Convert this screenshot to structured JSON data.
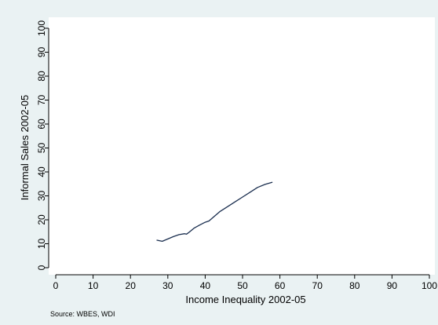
{
  "chart_data": {
    "type": "line",
    "title": "",
    "xlabel": "Income Inequality 2002-05",
    "ylabel": "Informal Sales 2002-05",
    "xlim": [
      0,
      100
    ],
    "ylim": [
      0,
      100
    ],
    "xticks": [
      0,
      10,
      20,
      30,
      40,
      50,
      60,
      70,
      80,
      90,
      100
    ],
    "yticks": [
      0,
      10,
      20,
      30,
      40,
      50,
      60,
      70,
      80,
      90,
      100
    ],
    "grid": false,
    "legend": "none",
    "note": "Source: WBES, WDI",
    "colors": {
      "background": "#eaf2f3",
      "plot_area": "#ffffff",
      "line": "#1a2e4f",
      "axis": "#000000"
    },
    "series": [
      {
        "x": [
          27.0,
          28.5,
          30.0,
          31.5,
          33.0,
          34.5,
          35.0,
          35.7,
          37.0,
          38.5,
          40.0,
          41.0,
          42.5,
          44.0,
          46.0,
          48.0,
          50.0,
          52.0,
          54.0,
          56.0,
          58.0
        ],
        "y": [
          11.5,
          11.0,
          12.0,
          13.0,
          13.8,
          14.2,
          14.0,
          14.8,
          16.5,
          17.8,
          19.0,
          19.5,
          21.5,
          23.5,
          25.5,
          27.5,
          29.5,
          31.5,
          33.5,
          34.8,
          35.7
        ]
      }
    ]
  }
}
